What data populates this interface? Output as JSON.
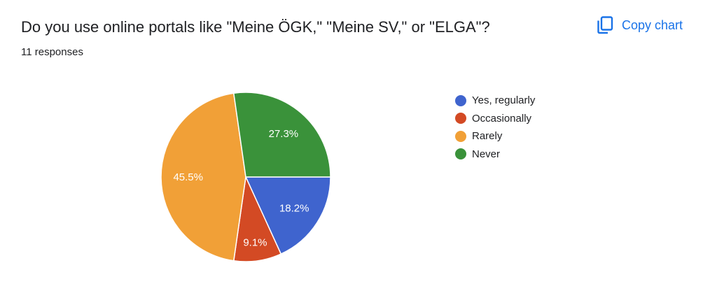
{
  "header": {
    "question": "Do you use online portals like \"Meine ÖGK,\" \"Meine SV,\" or \"ELGA\"?",
    "responses": "11 responses",
    "copy_label": "Copy chart",
    "copy_icon": "copy-icon",
    "accent_color": "#1a73e8"
  },
  "chart_data": {
    "type": "pie",
    "title": "Do you use online portals like \"Meine ÖGK,\" \"Meine SV,\" or \"ELGA\"?",
    "total_responses": 11,
    "legend_position": "right",
    "slices": [
      {
        "label": "Yes, regularly",
        "count": 2,
        "percent": 18.2,
        "percent_label": "18.2%",
        "color": "#3f64ce"
      },
      {
        "label": "Occasionally",
        "count": 1,
        "percent": 9.1,
        "percent_label": "9.1%",
        "color": "#d34a24"
      },
      {
        "label": "Rarely",
        "count": 5,
        "percent": 45.5,
        "percent_label": "45.5%",
        "color": "#f1a037"
      },
      {
        "label": "Never",
        "count": 3,
        "percent": 27.3,
        "percent_label": "27.3%",
        "color": "#3a923a"
      }
    ]
  }
}
